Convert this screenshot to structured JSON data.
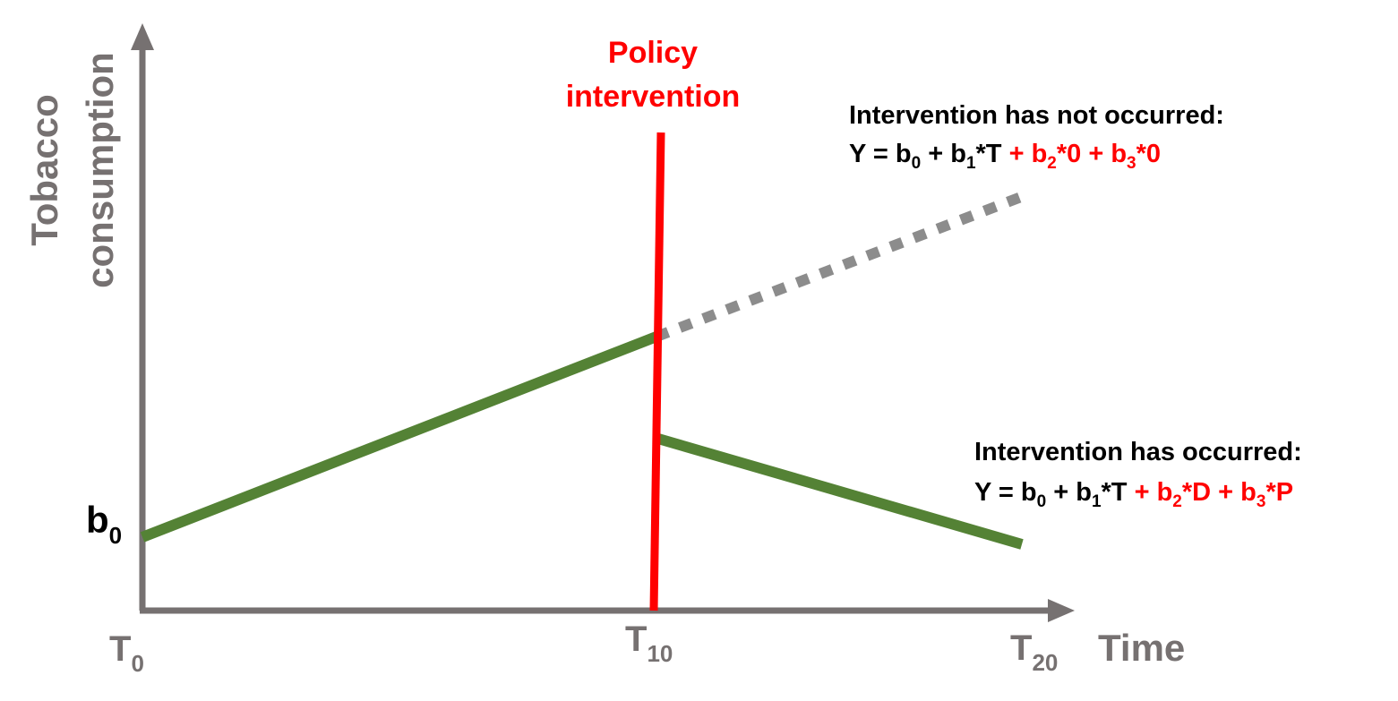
{
  "y_axis_label": [
    "Tobacco",
    "consumption"
  ],
  "x_axis_label": "Time",
  "y_intercept_label": {
    "base": "b",
    "sub": "0"
  },
  "x_ticks": [
    {
      "base": "T",
      "sub": "0"
    },
    {
      "base": "T",
      "sub": "10"
    },
    {
      "base": "T",
      "sub": "20"
    }
  ],
  "policy_label": [
    "Policy",
    "intervention"
  ],
  "not_occurred": {
    "heading": "Intervention has not occurred:",
    "eq_black": [
      "Y = b",
      "0",
      " + b",
      "1",
      "*T"
    ],
    "eq_red": [
      " + b",
      "2",
      "*0 + b",
      "3",
      "*0"
    ]
  },
  "occurred": {
    "heading": "Intervention has occurred:",
    "eq_black": [
      "Y = b",
      "0",
      " + b",
      "1",
      "*T"
    ],
    "eq_red": [
      " + b",
      "2",
      "*D + b",
      "3",
      "*P"
    ]
  },
  "colors": {
    "axis": "#767171",
    "trend": "#548235",
    "policy": "#ff0000",
    "counterfactual": "#8c8c8c",
    "text": "#000000",
    "red_text": "#ff0000"
  }
}
